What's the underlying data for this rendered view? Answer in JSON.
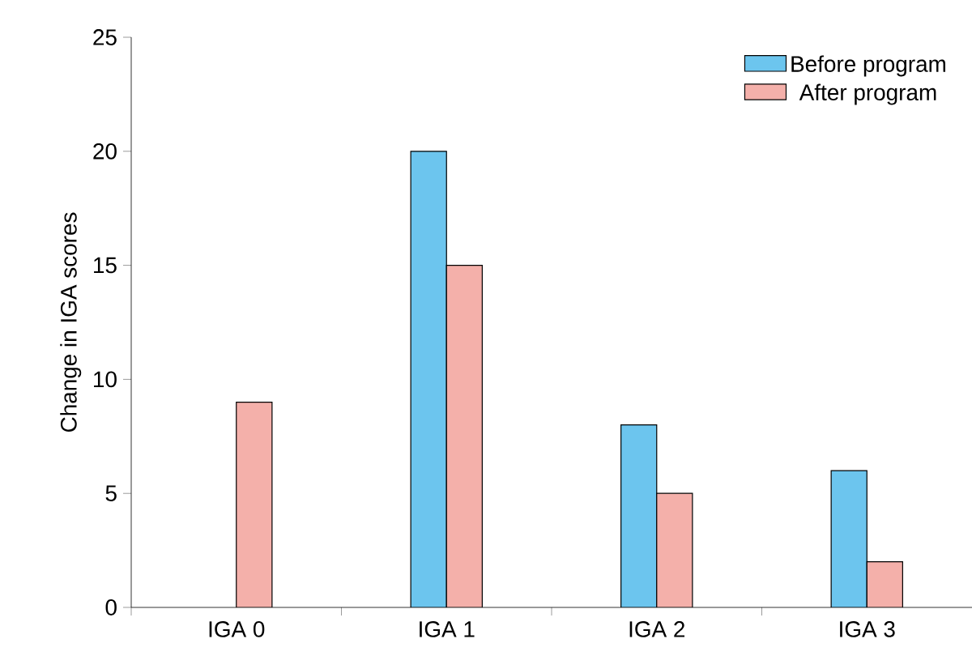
{
  "chart_data": {
    "type": "bar",
    "ylabel": "Change in IGA scores",
    "categories": [
      "IGA 0",
      "IGA 1",
      "IGA 2",
      "IGA 3"
    ],
    "series": [
      {
        "name": "Before program",
        "color": "#6cc5ee",
        "values": [
          null,
          20,
          8,
          6
        ]
      },
      {
        "name": "After program",
        "color": "#f4b0aa",
        "values": [
          9,
          15,
          5,
          2
        ]
      }
    ],
    "ylim": [
      0,
      25
    ],
    "yticks": [
      0,
      5,
      10,
      15,
      20,
      25
    ],
    "grid": false,
    "legend": "top right"
  }
}
